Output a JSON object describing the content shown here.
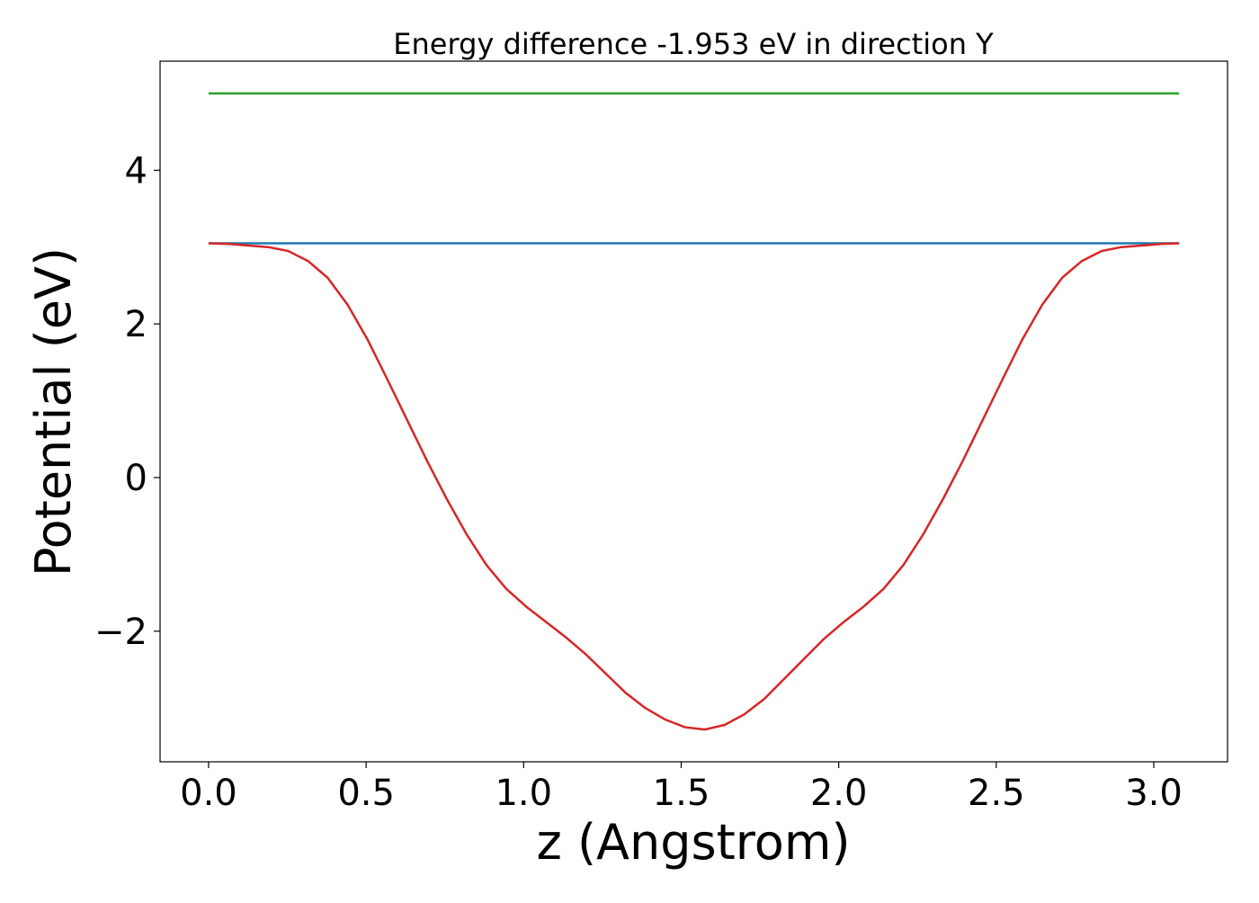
{
  "chart_data": {
    "type": "line",
    "title": "Energy difference -1.953 eV in direction Y",
    "xlabel": "z (Angstrom)",
    "ylabel": "Potential (eV)",
    "xlim": [
      -0.154,
      3.234
    ],
    "ylim": [
      -3.7,
      5.42
    ],
    "xticks": [
      0.0,
      0.5,
      1.0,
      1.5,
      2.0,
      2.5,
      3.0
    ],
    "xtick_labels": [
      "0.0",
      "0.5",
      "1.0",
      "1.5",
      "2.0",
      "2.5",
      "3.0"
    ],
    "yticks": [
      -2,
      0,
      2,
      4
    ],
    "ytick_labels": [
      "−2",
      "0",
      "2",
      "4"
    ],
    "grid": false,
    "legend": false,
    "series": [
      {
        "color": "#2ca02c",
        "x": [
          0.0,
          3.08
        ],
        "y": [
          5.0,
          5.0
        ]
      },
      {
        "color": "#1f77b4",
        "x": [
          0.0,
          3.08
        ],
        "y": [
          3.05,
          3.05
        ]
      },
      {
        "color": "#d62728",
        "x": [
          0.0,
          0.063,
          0.126,
          0.189,
          0.252,
          0.315,
          0.378,
          0.441,
          0.504,
          0.567,
          0.63,
          0.693,
          0.756,
          0.819,
          0.882,
          0.945,
          1.008,
          1.071,
          1.134,
          1.197,
          1.26,
          1.323,
          1.386,
          1.449,
          1.512,
          1.575,
          1.638,
          1.701,
          1.764,
          1.827,
          1.89,
          1.953,
          2.016,
          2.079,
          2.142,
          2.205,
          2.268,
          2.331,
          2.394,
          2.457,
          2.52,
          2.583,
          2.646,
          2.709,
          2.772,
          2.835,
          2.898,
          2.961,
          3.024,
          3.08
        ],
        "y": [
          3.05,
          3.04,
          3.02,
          3.0,
          2.95,
          2.82,
          2.6,
          2.25,
          1.8,
          1.28,
          0.75,
          0.22,
          -0.28,
          -0.74,
          -1.14,
          -1.45,
          -1.68,
          -1.88,
          -2.08,
          -2.3,
          -2.55,
          -2.8,
          -3.0,
          -3.15,
          -3.25,
          -3.28,
          -3.22,
          -3.08,
          -2.88,
          -2.62,
          -2.36,
          -2.1,
          -1.88,
          -1.68,
          -1.45,
          -1.14,
          -0.74,
          -0.28,
          0.22,
          0.75,
          1.28,
          1.8,
          2.25,
          2.6,
          2.82,
          2.95,
          3.0,
          3.02,
          3.04,
          3.05
        ]
      }
    ]
  }
}
